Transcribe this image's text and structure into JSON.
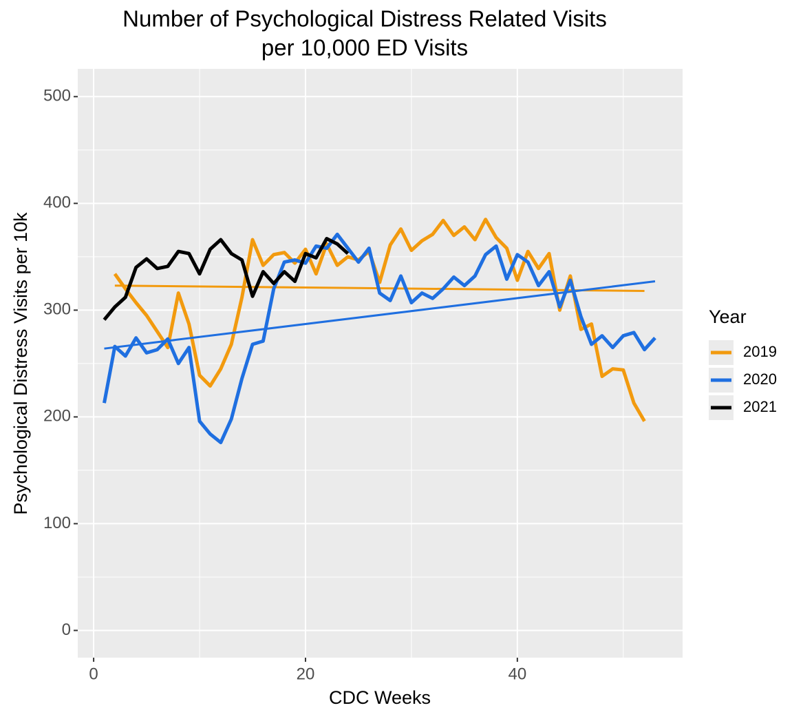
{
  "chart_data": {
    "type": "line",
    "title": [
      "Number of Psychological Distress Related Visits",
      "per 10,000 ED Visits"
    ],
    "x_label": "CDC Weeks",
    "y_label": "Psychological Distress Visits per 10k",
    "legend_title": "Year",
    "legend_position": "right",
    "xlim": [
      -1.5,
      55.6
    ],
    "ylim": [
      -25.5,
      526
    ],
    "xticks": [
      0,
      20,
      40
    ],
    "yticks": [
      0,
      100,
      200,
      300,
      400,
      500
    ],
    "xminor": [
      10,
      30,
      50
    ],
    "yminor": [
      50,
      150,
      250,
      350,
      450
    ],
    "grid": true,
    "panel_color": "#ebebeb",
    "series": [
      {
        "name": "2019",
        "color": "#f29a0e",
        "x": [
          2,
          3,
          4,
          5,
          6,
          7,
          8,
          9,
          10,
          11,
          12,
          13,
          14,
          15,
          16,
          17,
          18,
          19,
          20,
          21,
          22,
          23,
          24,
          25,
          26,
          27,
          28,
          29,
          30,
          31,
          32,
          33,
          34,
          35,
          36,
          37,
          38,
          39,
          40,
          41,
          42,
          43,
          44,
          45,
          46,
          47,
          48,
          49,
          50,
          51,
          52
        ],
        "values": [
          334,
          320,
          307,
          295,
          280,
          265,
          316,
          287,
          239,
          229,
          245,
          268,
          312,
          366,
          342,
          352,
          354,
          344,
          357,
          334,
          362,
          342,
          350,
          347,
          355,
          326,
          361,
          376,
          356,
          365,
          371,
          384,
          370,
          378,
          366,
          385,
          368,
          358,
          328,
          355,
          339,
          353,
          300,
          332,
          282,
          287,
          238,
          245,
          244,
          213,
          196
        ],
        "trend": {
          "x": [
            2,
            52
          ],
          "y": [
            323,
            318
          ]
        }
      },
      {
        "name": "2020",
        "color": "#1f6fe0",
        "x": [
          1,
          2,
          3,
          4,
          5,
          6,
          7,
          8,
          9,
          10,
          11,
          12,
          13,
          14,
          15,
          16,
          17,
          18,
          19,
          20,
          21,
          22,
          23,
          24,
          25,
          26,
          27,
          28,
          29,
          30,
          31,
          32,
          33,
          34,
          35,
          36,
          37,
          38,
          39,
          40,
          41,
          42,
          43,
          44,
          45,
          46,
          47,
          48,
          49,
          50,
          51,
          52,
          53
        ],
        "values": [
          213,
          266,
          257,
          274,
          260,
          263,
          273,
          250,
          265,
          196,
          184,
          176,
          198,
          236,
          268,
          271,
          320,
          345,
          347,
          344,
          360,
          358,
          371,
          358,
          345,
          358,
          316,
          309,
          332,
          307,
          316,
          311,
          320,
          331,
          323,
          332,
          352,
          360,
          329,
          352,
          345,
          323,
          336,
          303,
          328,
          294,
          268,
          276,
          265,
          276,
          279,
          263,
          274
        ],
        "trend": {
          "x": [
            1,
            53
          ],
          "y": [
            264,
            327
          ]
        }
      },
      {
        "name": "2021",
        "color": "#000000",
        "x": [
          1,
          2,
          3,
          4,
          5,
          6,
          7,
          8,
          9,
          10,
          11,
          12,
          13,
          14,
          15,
          16,
          17,
          18,
          19,
          20,
          21,
          22,
          23,
          24
        ],
        "values": [
          291,
          303,
          312,
          340,
          348,
          339,
          341,
          355,
          353,
          334,
          357,
          366,
          353,
          347,
          313,
          336,
          325,
          336,
          327,
          353,
          349,
          367,
          362,
          353
        ]
      }
    ]
  }
}
